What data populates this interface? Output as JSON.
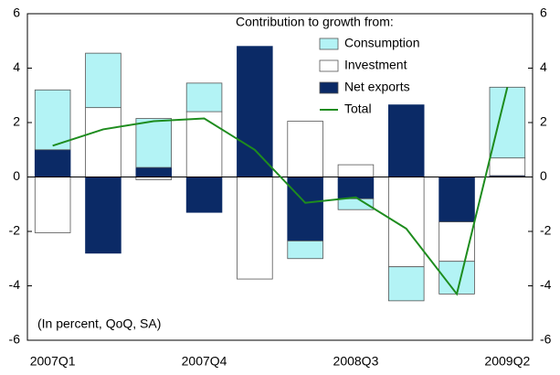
{
  "chart_data": {
    "type": "bar",
    "stacked": true,
    "legend_title": "Contribution to growth from:",
    "annotation": "(In percent, QoQ, SA)",
    "categories": [
      "2007Q1",
      null,
      null,
      "2007Q4",
      null,
      null,
      "2008Q3",
      null,
      null,
      "2009Q2"
    ],
    "series": [
      {
        "name": "Consumption",
        "color": "#b3f3f5",
        "values": [
          2.2,
          2.0,
          1.8,
          1.05,
          0,
          -0.65,
          -0.4,
          -1.25,
          -1.2,
          2.6
        ]
      },
      {
        "name": "Investment",
        "color": "#ffffff",
        "values": [
          -2.05,
          2.55,
          -0.1,
          2.4,
          -3.75,
          2.05,
          0.45,
          -3.3,
          -1.45,
          0.65
        ]
      },
      {
        "name": "Net exports",
        "color": "#0b2a66",
        "values": [
          1.0,
          -2.8,
          0.35,
          -1.3,
          4.8,
          -2.35,
          -0.8,
          2.65,
          -1.65,
          0.05
        ]
      },
      {
        "name": "Total",
        "color": "#1e8c1e",
        "type": "line",
        "values": [
          1.15,
          1.75,
          2.05,
          2.15,
          1.0,
          -0.95,
          -0.75,
          -1.9,
          -4.3,
          3.3
        ]
      }
    ],
    "ylim": [
      -6,
      6
    ],
    "yticks": [
      -6,
      -4,
      -2,
      0,
      2,
      4,
      6
    ],
    "grid": false
  }
}
